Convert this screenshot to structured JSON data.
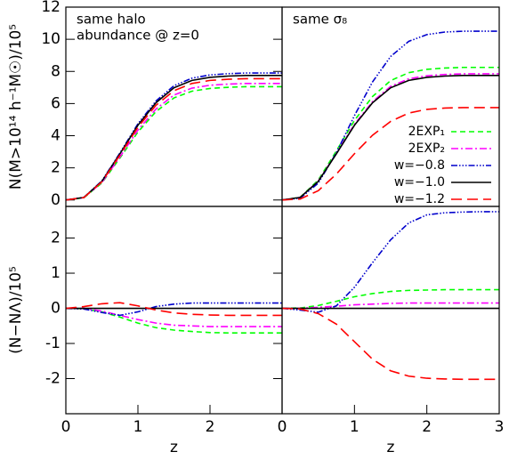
{
  "chart_data": [
    {
      "type": "line",
      "annotation": [
        "same halo",
        "abundance @ z=0"
      ],
      "ylabel": "N(M>10¹⁴ h⁻¹M☉)/10⁵",
      "x": [
        0,
        0.25,
        0.5,
        0.75,
        1,
        1.25,
        1.5,
        1.75,
        2,
        2.25,
        2.5,
        2.75,
        3
      ],
      "xlim": [
        0,
        3
      ],
      "ylim": [
        -0.4,
        12
      ],
      "yticks": [
        0,
        2,
        4,
        6,
        8,
        10,
        12
      ],
      "series": [
        {
          "color": "#00ff00",
          "style": "dashed",
          "values": [
            0,
            0.14,
            1.06,
            2.61,
            4.23,
            5.5,
            6.35,
            6.77,
            6.94,
            7.01,
            7.05,
            7.05,
            7.05
          ]
        },
        {
          "color": "#ff00ff",
          "style": "dashdot",
          "values": [
            0,
            0.15,
            1.09,
            2.68,
            4.35,
            5.66,
            6.53,
            6.96,
            7.14,
            7.21,
            7.25,
            7.25,
            7.25
          ]
        },
        {
          "color": "#0000cc",
          "style": "dashdotdotdot",
          "values": [
            0,
            0.16,
            1.19,
            2.92,
            4.74,
            6.16,
            7.11,
            7.58,
            7.78,
            7.86,
            7.9,
            7.9,
            7.9
          ]
        },
        {
          "color": "#000000",
          "style": "solid",
          "values": [
            0,
            0.16,
            1.16,
            2.87,
            4.65,
            6.05,
            6.98,
            7.44,
            7.63,
            7.71,
            7.75,
            7.75,
            7.75
          ]
        },
        {
          "color": "#ff0000",
          "style": "longdash",
          "values": [
            0,
            0.15,
            1.13,
            2.79,
            4.53,
            5.89,
            6.8,
            7.25,
            7.44,
            7.51,
            7.55,
            7.55,
            7.55
          ]
        }
      ]
    },
    {
      "type": "line",
      "annotation": [
        "same σ₈"
      ],
      "x": [
        0,
        0.25,
        0.5,
        0.75,
        1,
        1.25,
        1.5,
        1.75,
        2,
        2.25,
        2.5,
        2.75,
        3
      ],
      "xlim": [
        0,
        3
      ],
      "ylim": [
        -0.4,
        12
      ],
      "series": [
        {
          "name": "2EXP₁",
          "color": "#00ff00",
          "style": "dashed",
          "values": [
            0,
            0.17,
            1.24,
            3.05,
            4.95,
            6.44,
            7.43,
            7.92,
            8.13,
            8.21,
            8.25,
            8.25,
            8.25
          ]
        },
        {
          "name": "2EXP₂",
          "color": "#ff00ff",
          "style": "dashdot",
          "values": [
            0,
            0.16,
            1.18,
            2.9,
            4.71,
            6.12,
            7.07,
            7.54,
            7.73,
            7.81,
            7.85,
            7.85,
            7.85
          ]
        },
        {
          "name": "w=−0.8",
          "color": "#0000cc",
          "style": "dashdotdotdot",
          "values": [
            0,
            0.11,
            1.05,
            2.94,
            5.25,
            7.35,
            8.93,
            9.87,
            10.29,
            10.45,
            10.5,
            10.5,
            10.5
          ]
        },
        {
          "name": "w=−1.0",
          "color": "#000000",
          "style": "solid",
          "values": [
            0,
            0.16,
            1.16,
            2.87,
            4.65,
            6.05,
            6.98,
            7.44,
            7.63,
            7.71,
            7.75,
            7.75,
            7.75
          ]
        },
        {
          "name": "w=−1.2",
          "color": "#ff0000",
          "style": "longdash",
          "values": [
            0,
            0.06,
            0.58,
            1.61,
            2.88,
            4.03,
            4.89,
            5.41,
            5.64,
            5.72,
            5.75,
            5.75,
            5.75
          ]
        }
      ]
    },
    {
      "type": "line",
      "ylabel": "(N−NΛ)/10⁵",
      "xlabel": "z",
      "x": [
        0,
        0.25,
        0.5,
        0.75,
        1,
        1.25,
        1.5,
        1.75,
        2,
        2.25,
        2.5,
        2.75,
        3
      ],
      "xlim": [
        0,
        3
      ],
      "xticks": [
        0,
        1,
        2
      ],
      "ylim": [
        -3,
        2.9
      ],
      "yticks": [
        -2,
        -1,
        0,
        1,
        2
      ],
      "series": [
        {
          "color": "#00ff00",
          "style": "dashed",
          "values": [
            0,
            -0.01,
            -0.1,
            -0.25,
            -0.42,
            -0.55,
            -0.62,
            -0.66,
            -0.69,
            -0.7,
            -0.7,
            -0.7,
            -0.7
          ]
        },
        {
          "color": "#ff00ff",
          "style": "dashdot",
          "values": [
            0,
            0,
            -0.08,
            -0.2,
            -0.32,
            -0.42,
            -0.48,
            -0.5,
            -0.52,
            -0.52,
            -0.52,
            -0.52,
            -0.52
          ]
        },
        {
          "color": "#0000cc",
          "style": "dashdotdotdot",
          "values": [
            0,
            -0.02,
            -0.12,
            -0.2,
            -0.1,
            0.05,
            0.12,
            0.15,
            0.15,
            0.15,
            0.15,
            0.15,
            0.15
          ]
        },
        {
          "color": "#000000",
          "style": "solid",
          "values": [
            0,
            0,
            0,
            0,
            0,
            0,
            0,
            0,
            0,
            0,
            0,
            0,
            0
          ]
        },
        {
          "color": "#ff0000",
          "style": "longdash",
          "values": [
            0,
            0.05,
            0.13,
            0.16,
            0.07,
            -0.05,
            -0.13,
            -0.17,
            -0.19,
            -0.2,
            -0.2,
            -0.2,
            -0.2
          ]
        }
      ]
    },
    {
      "type": "line",
      "xlabel": "z",
      "x": [
        0,
        0.25,
        0.5,
        0.75,
        1,
        1.25,
        1.5,
        1.75,
        2,
        2.25,
        2.5,
        2.75,
        3
      ],
      "xlim": [
        0,
        3
      ],
      "xticks": [
        0,
        1,
        2,
        3
      ],
      "ylim": [
        -3,
        2.9
      ],
      "series": [
        {
          "color": "#00ff00",
          "style": "dashed",
          "values": [
            0,
            0.01,
            0.08,
            0.2,
            0.33,
            0.42,
            0.48,
            0.51,
            0.52,
            0.53,
            0.53,
            0.53,
            0.53
          ]
        },
        {
          "color": "#ff00ff",
          "style": "dashdot",
          "values": [
            0,
            0,
            0.03,
            0.06,
            0.1,
            0.12,
            0.14,
            0.15,
            0.15,
            0.15,
            0.15,
            0.15,
            0.15
          ]
        },
        {
          "color": "#0000cc",
          "style": "dashdotdotdot",
          "values": [
            0,
            -0.05,
            -0.11,
            0.07,
            0.6,
            1.3,
            1.95,
            2.43,
            2.66,
            2.72,
            2.74,
            2.75,
            2.75
          ]
        },
        {
          "color": "#000000",
          "style": "solid",
          "values": [
            0,
            0,
            0,
            0,
            0,
            0,
            0,
            0,
            0,
            0,
            0,
            0,
            0
          ]
        },
        {
          "color": "#ff0000",
          "style": "longdash",
          "values": [
            0,
            -0.02,
            -0.15,
            -0.45,
            -0.95,
            -1.45,
            -1.78,
            -1.93,
            -1.99,
            -2.01,
            -2.02,
            -2.02,
            -2.02
          ]
        }
      ]
    }
  ]
}
